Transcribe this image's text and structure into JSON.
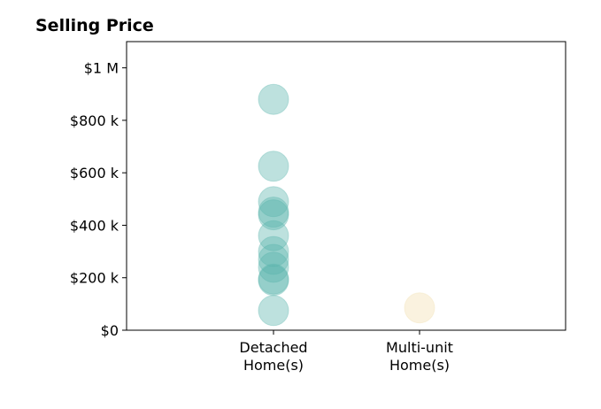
{
  "chart_data": {
    "type": "scatter",
    "title": "Selling Price",
    "xlabel": "",
    "ylabel": "",
    "categories": [
      "Detached\nHome(s)",
      "Multi-unit\nHome(s)"
    ],
    "ylim": [
      0,
      1100000
    ],
    "yticks": [
      0,
      200000,
      400000,
      600000,
      800000,
      1000000
    ],
    "ytick_labels": [
      "$0",
      "$200 k",
      "$400 k",
      "$600 k",
      "$800 k",
      "$1 M"
    ],
    "grid": false,
    "series": [
      {
        "category": "Detached\nHome(s)",
        "color": "#5ab4ac",
        "values": [
          880000,
          625000,
          490000,
          450000,
          440000,
          360000,
          300000,
          270000,
          240000,
          195000,
          190000,
          75000
        ]
      },
      {
        "category": "Multi-unit\nHome(s)",
        "color": "#f2dfae",
        "values": [
          85000
        ]
      }
    ]
  }
}
